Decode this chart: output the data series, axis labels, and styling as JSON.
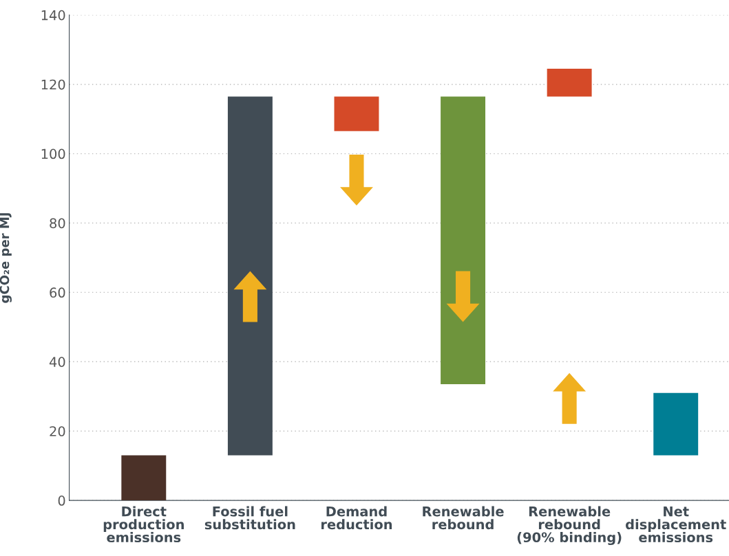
{
  "chart_data": {
    "type": "bar",
    "ylabel": "gCO₂e per MJ",
    "categories": [
      "Direct\nproduction\nemissions",
      "Fossil fuel\nsubstitution",
      "Demand\nreduction",
      "Renewable\nrebound",
      "Renewable\nrebound\n(90% binding)",
      "Net\ndisplacement\nemissions"
    ],
    "values": [
      13,
      103.5,
      10,
      83,
      8,
      18
    ],
    "base": [
      0,
      13,
      106.5,
      33.5,
      116.5,
      13
    ],
    "colors": [
      "#4b3128",
      "#414c55",
      "#d54a28",
      "#6e943c",
      "#d54a28",
      "#007e94"
    ],
    "ylim": [
      0,
      140
    ],
    "yticks": [
      0,
      20,
      40,
      60,
      80,
      100,
      120,
      140
    ],
    "grid": "y"
  }
}
